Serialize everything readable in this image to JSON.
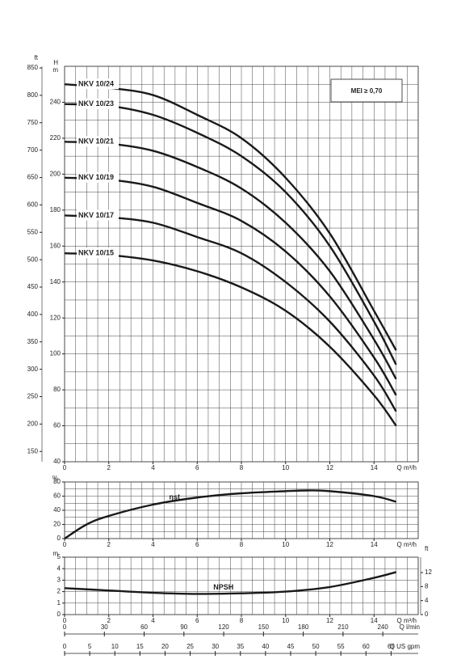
{
  "chart_data": [
    {
      "type": "line",
      "y_label": "H",
      "y_unit": "m",
      "y2_label": "ft",
      "x_label": "Q m³/h",
      "xlim": [
        0,
        16
      ],
      "xticks": [
        0,
        2,
        4,
        6,
        8,
        10,
        12,
        14
      ],
      "ylim": [
        40,
        260
      ],
      "yticks": [
        40,
        60,
        80,
        100,
        120,
        140,
        160,
        180,
        200,
        220,
        240
      ],
      "y2lim": [
        131.2,
        853
      ],
      "y2ticks": [
        150,
        200,
        250,
        300,
        350,
        400,
        450,
        500,
        550,
        600,
        650,
        700,
        750,
        800,
        850
      ],
      "grid": {
        "x_step": 0.5,
        "y_step": 10
      },
      "color": "#1a1a1a",
      "x": [
        0,
        2,
        4,
        6,
        8,
        10,
        12,
        14,
        15
      ],
      "series": [
        {
          "name": "NKV 10/24",
          "values": [
            250,
            248,
            244,
            233,
            220,
            198,
            167,
            124,
            102
          ]
        },
        {
          "name": "NKV 10/23",
          "values": [
            239,
            238,
            233,
            223,
            210,
            190,
            160,
            118,
            94
          ]
        },
        {
          "name": "NKV 10/21",
          "values": [
            218,
            217,
            213,
            204,
            192,
            173,
            146,
            108,
            86
          ]
        },
        {
          "name": "NKV 10/19",
          "values": [
            198,
            197,
            193,
            184,
            174,
            157,
            132,
            98,
            77
          ]
        },
        {
          "name": "NKV 10/17",
          "values": [
            177,
            176,
            173,
            165,
            156,
            140,
            118,
            88,
            68
          ]
        },
        {
          "name": "NKV 10/15",
          "values": [
            156,
            155,
            152,
            146,
            137,
            124,
            104,
            77,
            60
          ]
        }
      ],
      "annotation": "MEI ≥ 0,70"
    },
    {
      "type": "line",
      "y_label": "%",
      "x_label": "Q m³/h",
      "xlim": [
        0,
        16
      ],
      "xticks": [
        0,
        2,
        4,
        6,
        8,
        10,
        12,
        14
      ],
      "ylim": [
        0,
        80
      ],
      "yticks": [
        0,
        20,
        40,
        60,
        80
      ],
      "grid": {
        "x_step": 0.5,
        "y_step": 10
      },
      "color": "#1a1a1a",
      "x": [
        0,
        1,
        2,
        4,
        6,
        8,
        10,
        11,
        12,
        14,
        15
      ],
      "series": [
        {
          "name": "ηst",
          "values": [
            0,
            20,
            32,
            48,
            58,
            64,
            67,
            68,
            67,
            60,
            52
          ]
        }
      ]
    },
    {
      "type": "line",
      "y_label": "m",
      "y2_label": "ft",
      "x_label": "Q m³/h",
      "xlim": [
        0,
        16
      ],
      "xticks": [
        0,
        2,
        4,
        6,
        8,
        10,
        12,
        14
      ],
      "ylim": [
        0,
        5
      ],
      "yticks": [
        0,
        1,
        2,
        3,
        4,
        5
      ],
      "y2lim": [
        0,
        16.4
      ],
      "y2ticks": [
        0,
        4,
        8,
        12
      ],
      "grid": {
        "x_step": 0.5,
        "y_step": 1
      },
      "color": "#1a1a1a",
      "x": [
        0,
        2,
        4,
        6,
        8,
        10,
        12,
        14,
        15
      ],
      "series": [
        {
          "name": "NPSH",
          "values": [
            2.3,
            2.1,
            1.9,
            1.8,
            1.85,
            2.0,
            2.4,
            3.2,
            3.7
          ]
        }
      ],
      "extra_x_axes": [
        {
          "label": "Q l/min",
          "xlim": [
            0,
            266.7
          ],
          "xticks": [
            0,
            30,
            60,
            90,
            120,
            150,
            180,
            210,
            240
          ]
        },
        {
          "label": "Q US gpm",
          "xlim": [
            0,
            70.4
          ],
          "xticks": [
            0,
            5,
            10,
            15,
            20,
            25,
            30,
            35,
            40,
            45,
            50,
            55,
            60,
            65
          ]
        }
      ]
    }
  ]
}
